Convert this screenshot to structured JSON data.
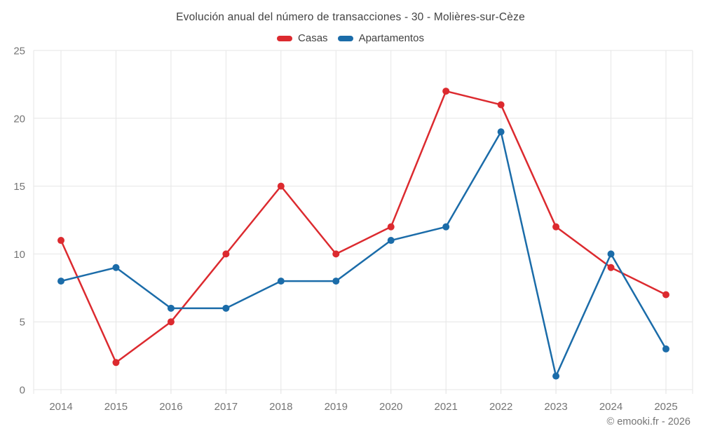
{
  "title": "Evolución anual del número de transacciones - 30 - Molières-sur-Cèze",
  "footer_credit": "© emooki.fr - 2026",
  "colors": {
    "casas": "#dc2a2f",
    "apartamentos": "#1b6ca9",
    "grid": "#e6e6e6",
    "axis_text": "#757575",
    "title_text": "#424242"
  },
  "chart_data": {
    "type": "line",
    "title": "Evolución anual del número de transacciones - 30 - Molières-sur-Cèze",
    "categories": [
      "2014",
      "2015",
      "2016",
      "2017",
      "2018",
      "2019",
      "2020",
      "2021",
      "2022",
      "2023",
      "2024",
      "2025"
    ],
    "series": [
      {
        "name": "Casas",
        "color": "#dc2a2f",
        "values": [
          11,
          2,
          5,
          10,
          15,
          10,
          12,
          22,
          21,
          12,
          9,
          7
        ]
      },
      {
        "name": "Apartamentos",
        "color": "#1b6ca9",
        "values": [
          8,
          9,
          6,
          6,
          8,
          8,
          11,
          12,
          19,
          1,
          10,
          3
        ]
      }
    ],
    "xlabel": "",
    "ylabel": "",
    "ylim": [
      0,
      25
    ],
    "yticks": [
      0,
      5,
      10,
      15,
      20,
      25
    ],
    "grid": true,
    "legend_position": "top",
    "marker": "circle"
  }
}
